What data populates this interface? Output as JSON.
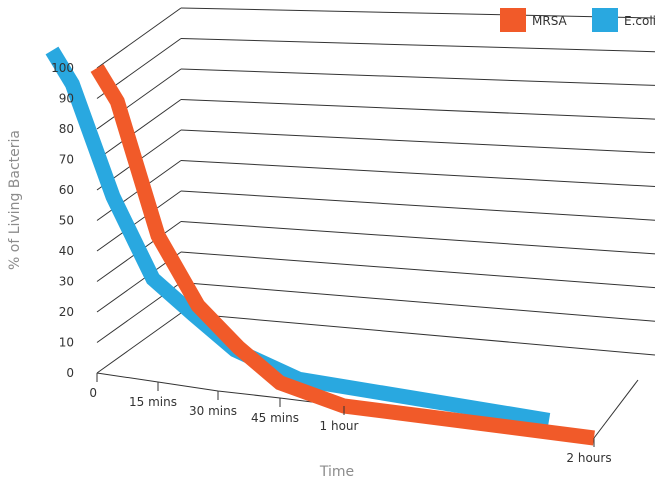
{
  "chart_data": {
    "type": "line",
    "title": "",
    "xlabel": "Time",
    "ylabel": "% of Living Bacteria",
    "ylim": [
      0,
      100
    ],
    "y_ticks": [
      "0",
      "10",
      "20",
      "30",
      "40",
      "50",
      "60",
      "70",
      "80",
      "90",
      "100"
    ],
    "categories": [
      "0",
      "15 mins",
      "30 mins",
      "45 mins",
      "1 hour",
      "2 hours"
    ],
    "grid": true,
    "legend_position": "top-right",
    "series": [
      {
        "name": "MRSA",
        "color": "#f15a29",
        "x": [
          0,
          5,
          15,
          25,
          35,
          45,
          60,
          120
        ],
        "values": [
          100,
          90,
          48,
          27,
          15,
          5,
          0,
          0
        ]
      },
      {
        "name": "E.coli",
        "color": "#29a8e0",
        "x": [
          0,
          5,
          15,
          25,
          35,
          45,
          60,
          120
        ],
        "values": [
          100,
          90,
          55,
          30,
          20,
          10,
          3,
          0
        ]
      }
    ]
  }
}
